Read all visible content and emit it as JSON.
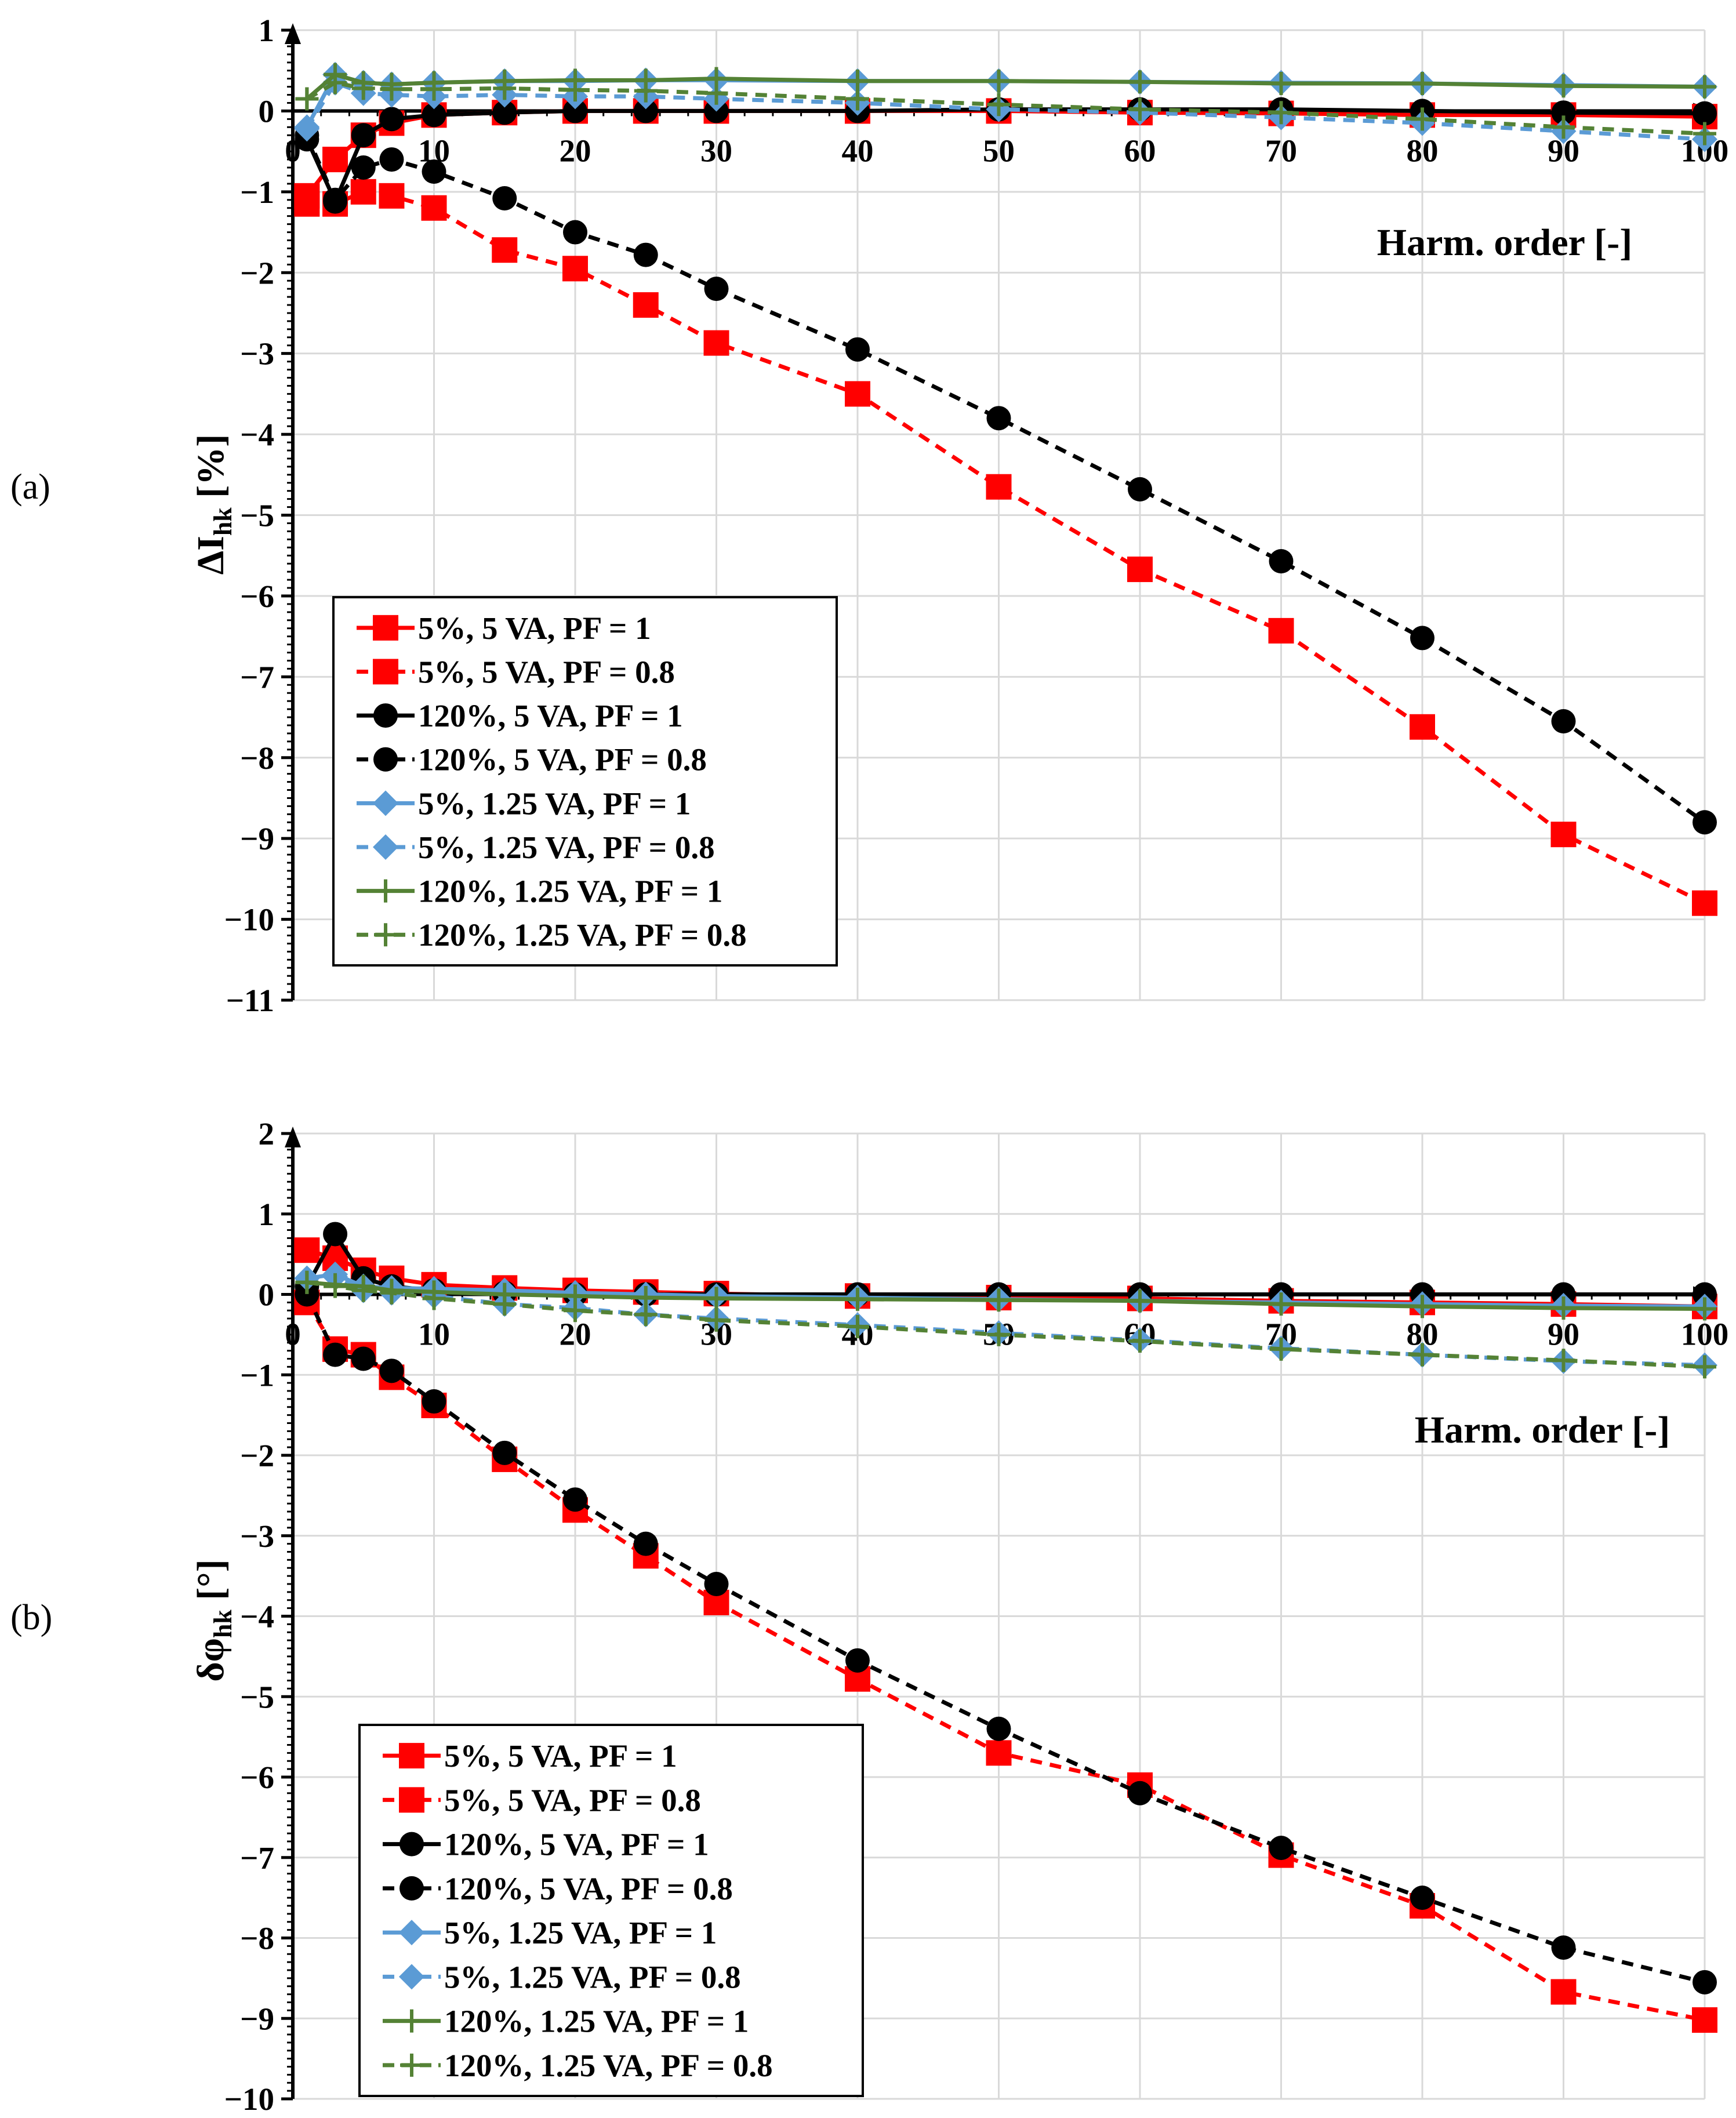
{
  "chart_data": [
    {
      "type": "line",
      "panel_label": "(a)",
      "ylabel_main": "ΔI",
      "ylabel_sub": "hk",
      "ylabel_unit": " [%]",
      "xlabel": "Harm. order [-]",
      "ylim": [
        -11,
        1
      ],
      "xlim": [
        0,
        100
      ],
      "yticks": [
        1,
        0,
        -1,
        -2,
        -3,
        -4,
        -5,
        -6,
        -7,
        -8,
        -9,
        -10,
        -11
      ],
      "xticks": [
        0,
        10,
        20,
        30,
        40,
        50,
        60,
        70,
        80,
        90,
        100
      ],
      "grid": true,
      "legend_position": "bottom-left",
      "series": [
        {
          "name": "5%, 5 VA, PF = 1",
          "color": "#ff0000",
          "dash": "solid",
          "marker": "square",
          "x": [
            1,
            3,
            5,
            7,
            10,
            15,
            20,
            25,
            30,
            40,
            50,
            60,
            70,
            80,
            90,
            100
          ],
          "y": [
            -1.05,
            -0.6,
            -0.3,
            -0.15,
            -0.05,
            -0.02,
            0,
            0,
            0,
            0,
            0,
            -0.02,
            -0.03,
            -0.05,
            -0.05,
            -0.07
          ]
        },
        {
          "name": "5%, 5 VA, PF = 0.8",
          "color": "#ff0000",
          "dash": "dashed",
          "marker": "square",
          "x": [
            1,
            3,
            5,
            7,
            10,
            15,
            20,
            25,
            30,
            40,
            50,
            60,
            70,
            80,
            90,
            100
          ],
          "y": [
            -1.15,
            -1.15,
            -1.0,
            -1.05,
            -1.2,
            -1.72,
            -1.95,
            -2.4,
            -2.87,
            -3.5,
            -4.65,
            -5.67,
            -6.43,
            -7.62,
            -8.95,
            -9.8
          ]
        },
        {
          "name": "120%, 5 VA, PF = 1",
          "color": "#000000",
          "dash": "solid",
          "marker": "circle",
          "x": [
            1,
            3,
            5,
            7,
            10,
            15,
            20,
            25,
            30,
            40,
            50,
            60,
            70,
            80,
            90,
            100
          ],
          "y": [
            -0.35,
            -1.12,
            -0.3,
            -0.1,
            -0.05,
            -0.02,
            0,
            0,
            0,
            0,
            0.02,
            0.02,
            0.02,
            0,
            -0.02,
            -0.03
          ]
        },
        {
          "name": "120%, 5 VA, PF = 0.8",
          "color": "#000000",
          "dash": "dashed",
          "marker": "circle",
          "x": [
            1,
            3,
            5,
            7,
            10,
            15,
            20,
            25,
            30,
            40,
            50,
            60,
            70,
            80,
            90,
            100
          ],
          "y": [
            -0.3,
            -1.1,
            -0.7,
            -0.6,
            -0.75,
            -1.08,
            -1.5,
            -1.78,
            -2.2,
            -2.95,
            -3.8,
            -4.68,
            -5.57,
            -6.52,
            -7.55,
            -8.8
          ]
        },
        {
          "name": "5%, 1.25 VA, PF = 1",
          "color": "#5b9bd5",
          "dash": "solid",
          "marker": "diamond",
          "x": [
            1,
            3,
            5,
            7,
            10,
            15,
            20,
            25,
            30,
            40,
            50,
            60,
            70,
            80,
            90,
            100
          ],
          "y": [
            -0.2,
            0.45,
            0.35,
            0.33,
            0.35,
            0.37,
            0.37,
            0.38,
            0.38,
            0.37,
            0.37,
            0.36,
            0.35,
            0.34,
            0.32,
            0.3
          ]
        },
        {
          "name": "5%, 1.25 VA, PF = 0.8",
          "color": "#5b9bd5",
          "dash": "dashed",
          "marker": "diamond",
          "x": [
            1,
            3,
            5,
            7,
            10,
            15,
            20,
            25,
            30,
            40,
            50,
            60,
            70,
            80,
            90,
            100
          ],
          "y": [
            -0.22,
            0.35,
            0.22,
            0.2,
            0.18,
            0.2,
            0.18,
            0.18,
            0.15,
            0.1,
            0.02,
            -0.02,
            -0.08,
            -0.15,
            -0.25,
            -0.35
          ]
        },
        {
          "name": "120%, 1.25 VA, PF = 1",
          "color": "#548235",
          "dash": "solid",
          "marker": "plus",
          "x": [
            1,
            3,
            5,
            7,
            10,
            15,
            20,
            25,
            30,
            40,
            50,
            60,
            70,
            80,
            90,
            100
          ],
          "y": [
            0.15,
            0.45,
            0.35,
            0.33,
            0.35,
            0.37,
            0.38,
            0.38,
            0.4,
            0.37,
            0.37,
            0.36,
            0.34,
            0.34,
            0.31,
            0.3
          ]
        },
        {
          "name": "120%, 1.25 VA, PF = 0.8",
          "color": "#548235",
          "dash": "dashed",
          "marker": "plus",
          "x": [
            1,
            3,
            5,
            7,
            10,
            15,
            20,
            25,
            30,
            40,
            50,
            60,
            70,
            80,
            90,
            100
          ],
          "y": [
            0.15,
            0.35,
            0.28,
            0.27,
            0.27,
            0.28,
            0.26,
            0.25,
            0.22,
            0.15,
            0.08,
            0.02,
            -0.02,
            -0.1,
            -0.2,
            -0.28
          ]
        }
      ]
    },
    {
      "type": "line",
      "panel_label": "(b)",
      "ylabel_main": "δφ",
      "ylabel_sub": "hk",
      "ylabel_unit": " [°]",
      "xlabel": "Harm. order [-]",
      "ylim": [
        -10,
        2
      ],
      "xlim": [
        0,
        100
      ],
      "yticks": [
        2,
        1,
        0,
        -1,
        -2,
        -3,
        -4,
        -5,
        -6,
        -7,
        -8,
        -9,
        -10
      ],
      "xticks": [
        0,
        10,
        20,
        30,
        40,
        50,
        60,
        70,
        80,
        90,
        100
      ],
      "grid": true,
      "legend_position": "bottom-left",
      "series": [
        {
          "name": "5%, 5 VA, PF = 1",
          "color": "#ff0000",
          "dash": "solid",
          "marker": "square",
          "x": [
            1,
            3,
            5,
            7,
            10,
            15,
            20,
            25,
            30,
            40,
            50,
            60,
            70,
            80,
            90,
            100
          ],
          "y": [
            0.55,
            0.45,
            0.3,
            0.2,
            0.12,
            0.08,
            0.05,
            0.03,
            0.01,
            -0.02,
            -0.04,
            -0.05,
            -0.08,
            -0.1,
            -0.12,
            -0.15
          ]
        },
        {
          "name": "5%, 5 VA, PF = 0.8",
          "color": "#ff0000",
          "dash": "dashed",
          "marker": "square",
          "x": [
            1,
            3,
            5,
            7,
            10,
            15,
            20,
            25,
            30,
            40,
            50,
            60,
            70,
            80,
            90,
            100
          ],
          "y": [
            -0.1,
            -0.68,
            -0.75,
            -1.03,
            -1.38,
            -2.05,
            -2.68,
            -3.25,
            -3.83,
            -4.78,
            -5.7,
            -6.1,
            -6.97,
            -7.6,
            -8.67,
            -9.02
          ]
        },
        {
          "name": "120%, 5 VA, PF = 1",
          "color": "#000000",
          "dash": "solid",
          "marker": "circle",
          "x": [
            1,
            3,
            5,
            7,
            10,
            15,
            20,
            25,
            30,
            40,
            50,
            60,
            70,
            80,
            90,
            100
          ],
          "y": [
            0.1,
            0.75,
            0.2,
            0.1,
            0.05,
            0.02,
            0,
            0,
            0,
            0,
            0,
            0,
            0,
            0,
            0,
            0
          ]
        },
        {
          "name": "120%, 5 VA, PF = 0.8",
          "color": "#000000",
          "dash": "dashed",
          "marker": "circle",
          "x": [
            1,
            3,
            5,
            7,
            10,
            15,
            20,
            25,
            30,
            40,
            50,
            60,
            70,
            80,
            90,
            100
          ],
          "y": [
            0,
            -0.75,
            -0.8,
            -0.95,
            -1.33,
            -1.97,
            -2.55,
            -3.1,
            -3.6,
            -4.55,
            -5.4,
            -6.2,
            -6.88,
            -7.5,
            -8.12,
            -8.55
          ]
        },
        {
          "name": "5%, 1.25 VA, PF = 1",
          "color": "#5b9bd5",
          "dash": "solid",
          "marker": "diamond",
          "x": [
            1,
            3,
            5,
            7,
            10,
            15,
            20,
            25,
            30,
            40,
            50,
            60,
            70,
            80,
            90,
            100
          ],
          "y": [
            0.2,
            0.25,
            0.1,
            0.08,
            0.07,
            0.05,
            0.02,
            0,
            -0.02,
            -0.04,
            -0.06,
            -0.08,
            -0.1,
            -0.12,
            -0.14,
            -0.15
          ]
        },
        {
          "name": "5%, 1.25 VA, PF = 0.8",
          "color": "#5b9bd5",
          "dash": "dashed",
          "marker": "diamond",
          "x": [
            1,
            3,
            5,
            7,
            10,
            15,
            20,
            25,
            30,
            40,
            50,
            60,
            70,
            80,
            90,
            100
          ],
          "y": [
            0.2,
            0.22,
            0.05,
            0.02,
            -0.02,
            -0.12,
            -0.17,
            -0.25,
            -0.3,
            -0.38,
            -0.48,
            -0.57,
            -0.67,
            -0.75,
            -0.83,
            -0.88
          ]
        },
        {
          "name": "120%, 1.25 VA, PF = 1",
          "color": "#548235",
          "dash": "solid",
          "marker": "plus",
          "x": [
            1,
            3,
            5,
            7,
            10,
            15,
            20,
            25,
            30,
            40,
            50,
            60,
            70,
            80,
            90,
            100
          ],
          "y": [
            0.15,
            0.12,
            0.1,
            0.05,
            0.03,
            0,
            -0.02,
            -0.04,
            -0.05,
            -0.06,
            -0.07,
            -0.08,
            -0.12,
            -0.15,
            -0.17,
            -0.18
          ]
        },
        {
          "name": "120%, 1.25 VA, PF = 0.8",
          "color": "#548235",
          "dash": "dashed",
          "marker": "plus",
          "x": [
            1,
            3,
            5,
            7,
            10,
            15,
            20,
            25,
            30,
            40,
            50,
            60,
            70,
            80,
            90,
            100
          ],
          "y": [
            0.15,
            0.1,
            0.05,
            0.02,
            -0.05,
            -0.12,
            -0.2,
            -0.25,
            -0.32,
            -0.4,
            -0.5,
            -0.58,
            -0.68,
            -0.75,
            -0.82,
            -0.9
          ]
        }
      ]
    }
  ]
}
